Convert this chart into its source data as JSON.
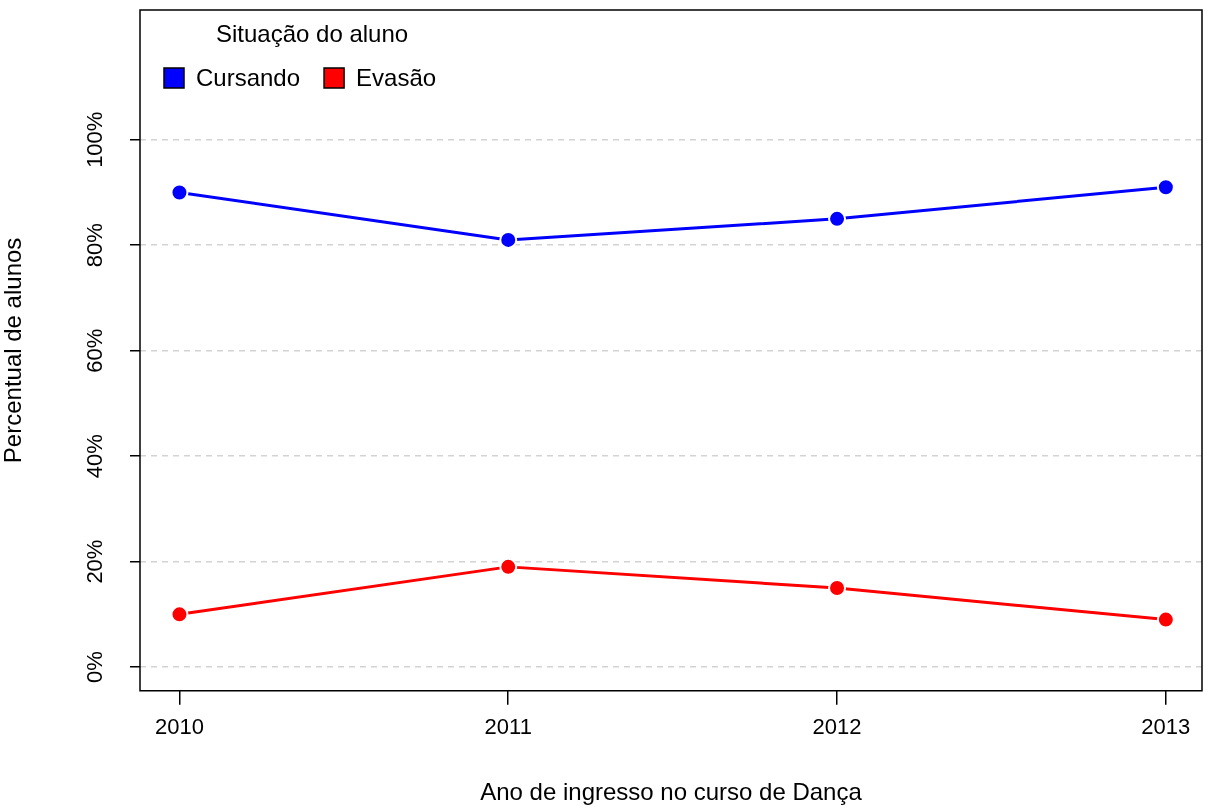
{
  "chart_data": {
    "type": "line",
    "xlabel": "Ano de ingresso no curso de Dança",
    "ylabel": "Percentual de alunos",
    "legend_title": "Situação do aluno",
    "x": [
      2010,
      2011,
      2012,
      2013
    ],
    "xlim": [
      2009.88,
      2013.11
    ],
    "xticks": [
      2010,
      2011,
      2012,
      2013
    ],
    "ylim": [
      -4.5,
      124.6
    ],
    "yticks": [
      {
        "value": 0,
        "label": "0%"
      },
      {
        "value": 20,
        "label": "20%"
      },
      {
        "value": 40,
        "label": "40%"
      },
      {
        "value": 60,
        "label": "60%"
      },
      {
        "value": 80,
        "label": "80%"
      },
      {
        "value": 100,
        "label": "100%"
      }
    ],
    "series": [
      {
        "name": "Cursando",
        "color": "#0000ff",
        "values": [
          90,
          81,
          85,
          91
        ]
      },
      {
        "name": "Evasão",
        "color": "#ff0000",
        "values": [
          10,
          19,
          15,
          9
        ]
      }
    ],
    "grid": "y",
    "legend": "top left",
    "marker": "circle",
    "line_style": "solid"
  }
}
